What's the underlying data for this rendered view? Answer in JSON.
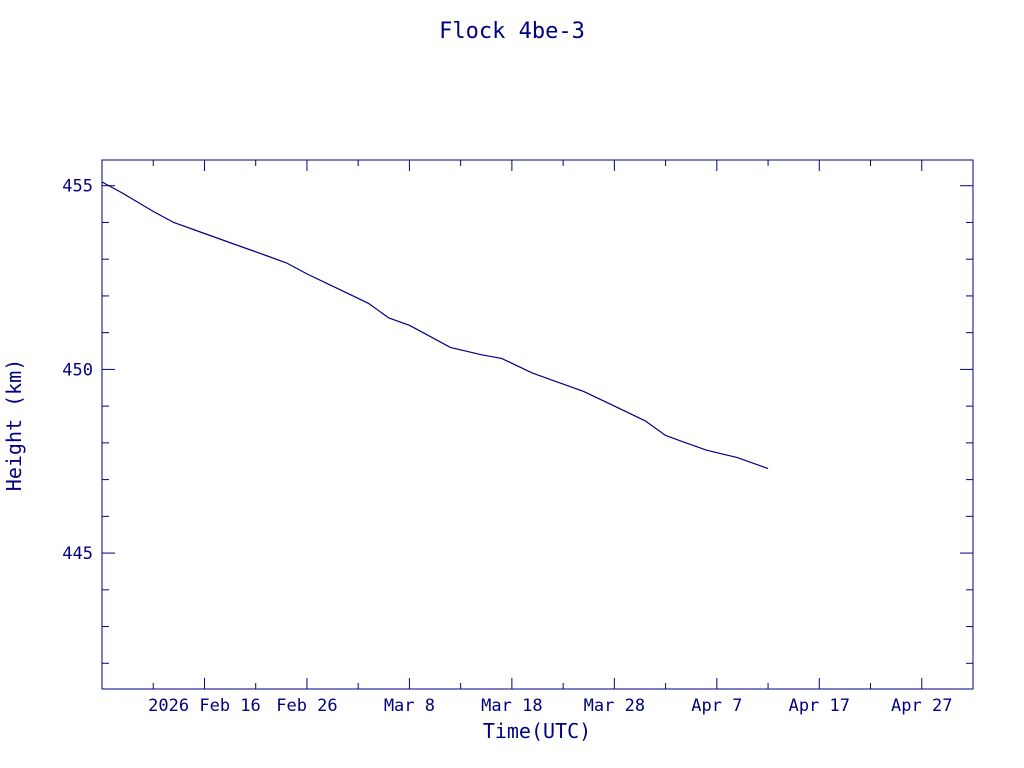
{
  "chart_data": {
    "type": "line",
    "title": "Flock 4be-3",
    "xlabel": "Time(UTC)",
    "ylabel": "Height (km)",
    "color": "#000080",
    "xlim": [
      "2026-02-06",
      "2026-05-02"
    ],
    "ylim": [
      441.3,
      455.7
    ],
    "x_ticks": [
      {
        "date": "2026-02-16",
        "label": "2026 Feb 16"
      },
      {
        "date": "2026-02-26",
        "label": "Feb 26"
      },
      {
        "date": "2026-03-08",
        "label": "Mar  8"
      },
      {
        "date": "2026-03-18",
        "label": "Mar 18"
      },
      {
        "date": "2026-03-28",
        "label": "Mar 28"
      },
      {
        "date": "2026-04-07",
        "label": "Apr  7"
      },
      {
        "date": "2026-04-17",
        "label": "Apr 17"
      },
      {
        "date": "2026-04-27",
        "label": "Apr 27"
      }
    ],
    "y_ticks": [
      {
        "value": 445,
        "label": "445"
      },
      {
        "value": 450,
        "label": "450"
      },
      {
        "value": 455,
        "label": "455"
      }
    ],
    "y_minor_step": 1,
    "series": [
      {
        "x": [
          "2026-02-06",
          "2026-02-08",
          "2026-02-11",
          "2026-02-13",
          "2026-02-16",
          "2026-02-19",
          "2026-02-21",
          "2026-02-22",
          "2026-02-24",
          "2026-02-26",
          "2026-03-01",
          "2026-03-04",
          "2026-03-06",
          "2026-03-08",
          "2026-03-10",
          "2026-03-12",
          "2026-03-15",
          "2026-03-17",
          "2026-03-20",
          "2026-03-21",
          "2026-03-22",
          "2026-03-25",
          "2026-03-28",
          "2026-03-31",
          "2026-04-02",
          "2026-04-04",
          "2026-04-06",
          "2026-04-09",
          "2026-04-12"
        ],
        "y": [
          455.1,
          454.8,
          454.3,
          454.0,
          453.7,
          453.4,
          453.2,
          453.1,
          452.9,
          452.6,
          452.2,
          451.8,
          451.4,
          451.2,
          450.9,
          450.6,
          450.4,
          450.3,
          449.9,
          449.8,
          449.7,
          449.4,
          449.0,
          448.6,
          448.2,
          448.0,
          447.8,
          447.6,
          447.3
        ]
      }
    ]
  }
}
